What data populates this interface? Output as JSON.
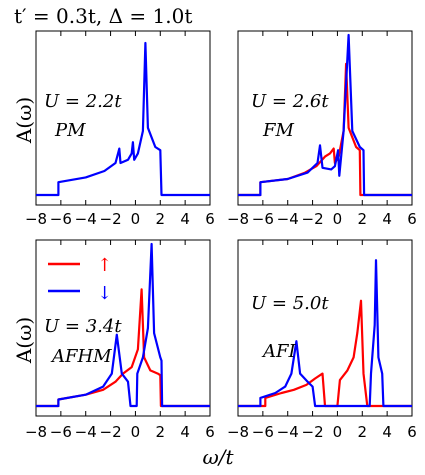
{
  "figure": {
    "title": "t′ = 0.3t, Δ = 1.0t",
    "xlabel": "ω/t",
    "ylabel": "A(ω)"
  },
  "legend": {
    "up_label": "↑",
    "down_label": "↓",
    "up_color": "#ff0000",
    "down_color": "#0000ff"
  },
  "chart_data": [
    {
      "type": "line",
      "annotations": [
        "U = 2.2t",
        "PM"
      ],
      "xlim": [
        -8,
        6
      ],
      "xticks": [
        -8,
        -6,
        -4,
        -2,
        0,
        2,
        4,
        6
      ],
      "series": [
        {
          "name": "↓",
          "color": "#0000ff",
          "points": [
            [
              -8,
              0
            ],
            [
              -6.2,
              0
            ],
            [
              -6.2,
              0.08
            ],
            [
              -4,
              0.11
            ],
            [
              -2.5,
              0.15
            ],
            [
              -1.6,
              0.2
            ],
            [
              -1.3,
              0.29
            ],
            [
              -1.2,
              0.2
            ],
            [
              -0.6,
              0.22
            ],
            [
              -0.3,
              0.26
            ],
            [
              -0.2,
              0.33
            ],
            [
              -0.1,
              0.22
            ],
            [
              0.2,
              0.26
            ],
            [
              0.6,
              0.4
            ],
            [
              0.8,
              0.95
            ],
            [
              1.0,
              0.42
            ],
            [
              1.6,
              0.3
            ],
            [
              2.0,
              0.28
            ],
            [
              2.1,
              0
            ],
            [
              6,
              0
            ]
          ]
        }
      ]
    },
    {
      "type": "line",
      "annotations": [
        "U = 2.6t",
        "FM"
      ],
      "xlim": [
        -8,
        6
      ],
      "xticks": [
        -8,
        -6,
        -4,
        -2,
        0,
        2,
        4,
        6
      ],
      "series": [
        {
          "name": "↑",
          "color": "#ff0000",
          "points": [
            [
              -8,
              0
            ],
            [
              -6.2,
              0
            ],
            [
              -6.2,
              0.08
            ],
            [
              -4,
              0.1
            ],
            [
              -2.6,
              0.14
            ],
            [
              -1.7,
              0.18
            ],
            [
              -1.0,
              0.24
            ],
            [
              -0.6,
              0.26
            ],
            [
              -0.3,
              0.29
            ],
            [
              -0.2,
              0.2
            ],
            [
              0.1,
              0.24
            ],
            [
              0.5,
              0.4
            ],
            [
              0.7,
              0.82
            ],
            [
              0.9,
              0.42
            ],
            [
              1.5,
              0.3
            ],
            [
              1.8,
              0.28
            ],
            [
              1.85,
              0
            ],
            [
              6,
              0
            ]
          ]
        },
        {
          "name": "↓",
          "color": "#0000ff",
          "points": [
            [
              -8,
              0
            ],
            [
              -6.2,
              0
            ],
            [
              -6.2,
              0.08
            ],
            [
              -4,
              0.1
            ],
            [
              -2.4,
              0.14
            ],
            [
              -1.6,
              0.2
            ],
            [
              -1.4,
              0.31
            ],
            [
              -1.2,
              0.17
            ],
            [
              -0.5,
              0.16
            ],
            [
              -0.2,
              0.18
            ],
            [
              0.05,
              0.28
            ],
            [
              0.15,
              0.12
            ],
            [
              0.5,
              0.4
            ],
            [
              0.9,
              1.0
            ],
            [
              1.2,
              0.4
            ],
            [
              1.8,
              0.3
            ],
            [
              2.1,
              0.28
            ],
            [
              2.15,
              0
            ],
            [
              6,
              0
            ]
          ]
        }
      ]
    },
    {
      "type": "line",
      "annotations": [
        "U = 3.4t",
        "AFHM"
      ],
      "xlim": [
        -8,
        6
      ],
      "xticks": [
        -8,
        -6,
        -4,
        -2,
        0,
        2,
        4,
        6
      ],
      "series": [
        {
          "name": "↑",
          "color": "#ff0000",
          "points": [
            [
              -8,
              0
            ],
            [
              -6.2,
              0
            ],
            [
              -6.2,
              0.04
            ],
            [
              -4,
              0.07
            ],
            [
              -2.6,
              0.1
            ],
            [
              -1.6,
              0.15
            ],
            [
              -1.0,
              0.2
            ],
            [
              -0.3,
              0.24
            ],
            [
              0.2,
              0.35
            ],
            [
              0.5,
              0.72
            ],
            [
              0.7,
              0.3
            ],
            [
              1.2,
              0.22
            ],
            [
              1.8,
              0.2
            ],
            [
              2.0,
              0.19
            ],
            [
              2.05,
              0
            ],
            [
              6,
              0
            ]
          ]
        },
        {
          "name": "↓",
          "color": "#0000ff",
          "points": [
            [
              -8,
              0
            ],
            [
              -6.2,
              0
            ],
            [
              -6.2,
              0.04
            ],
            [
              -4,
              0.07
            ],
            [
              -2.6,
              0.12
            ],
            [
              -1.9,
              0.2
            ],
            [
              -1.5,
              0.44
            ],
            [
              -1.1,
              0.2
            ],
            [
              -0.6,
              0.15
            ],
            [
              -0.4,
              0
            ],
            [
              0.1,
              0
            ],
            [
              0.15,
              0.2
            ],
            [
              0.6,
              0.3
            ],
            [
              1.0,
              0.48
            ],
            [
              1.3,
              1.0
            ],
            [
              1.5,
              0.45
            ],
            [
              2.0,
              0.3
            ],
            [
              2.1,
              0.28
            ],
            [
              2.15,
              0
            ],
            [
              6,
              0
            ]
          ]
        }
      ]
    },
    {
      "type": "line",
      "annotations": [
        "U = 5.0t",
        "AFI"
      ],
      "xlim": [
        -8,
        6
      ],
      "xticks": [
        -8,
        -6,
        -4,
        -2,
        0,
        2,
        4,
        6
      ],
      "series": [
        {
          "name": "↑",
          "color": "#ff0000",
          "points": [
            [
              -8,
              0
            ],
            [
              -5.8,
              0
            ],
            [
              -5.8,
              0.05
            ],
            [
              -4.5,
              0.08
            ],
            [
              -3.5,
              0.1
            ],
            [
              -2.5,
              0.13
            ],
            [
              -1.8,
              0.17
            ],
            [
              -1.2,
              0.2
            ],
            [
              -1.0,
              0
            ],
            [
              0,
              0
            ],
            [
              0.2,
              0.16
            ],
            [
              0.8,
              0.22
            ],
            [
              1.3,
              0.3
            ],
            [
              1.6,
              0.45
            ],
            [
              1.9,
              0.65
            ],
            [
              2.1,
              0.2
            ],
            [
              2.4,
              0
            ],
            [
              6,
              0
            ]
          ]
        },
        {
          "name": "↓",
          "color": "#0000ff",
          "points": [
            [
              -8,
              0
            ],
            [
              -6.2,
              0
            ],
            [
              -6.2,
              0.05
            ],
            [
              -5,
              0.08
            ],
            [
              -4.2,
              0.12
            ],
            [
              -3.7,
              0.2
            ],
            [
              -3.3,
              0.4
            ],
            [
              -3.0,
              0.2
            ],
            [
              -2.4,
              0.15
            ],
            [
              -2.0,
              0.12
            ],
            [
              -1.8,
              0
            ],
            [
              2.6,
              0
            ],
            [
              2.7,
              0.2
            ],
            [
              3.0,
              0.5
            ],
            [
              3.1,
              0.9
            ],
            [
              3.3,
              0.3
            ],
            [
              3.6,
              0.2
            ],
            [
              3.7,
              0
            ],
            [
              6,
              0
            ]
          ]
        }
      ]
    }
  ]
}
